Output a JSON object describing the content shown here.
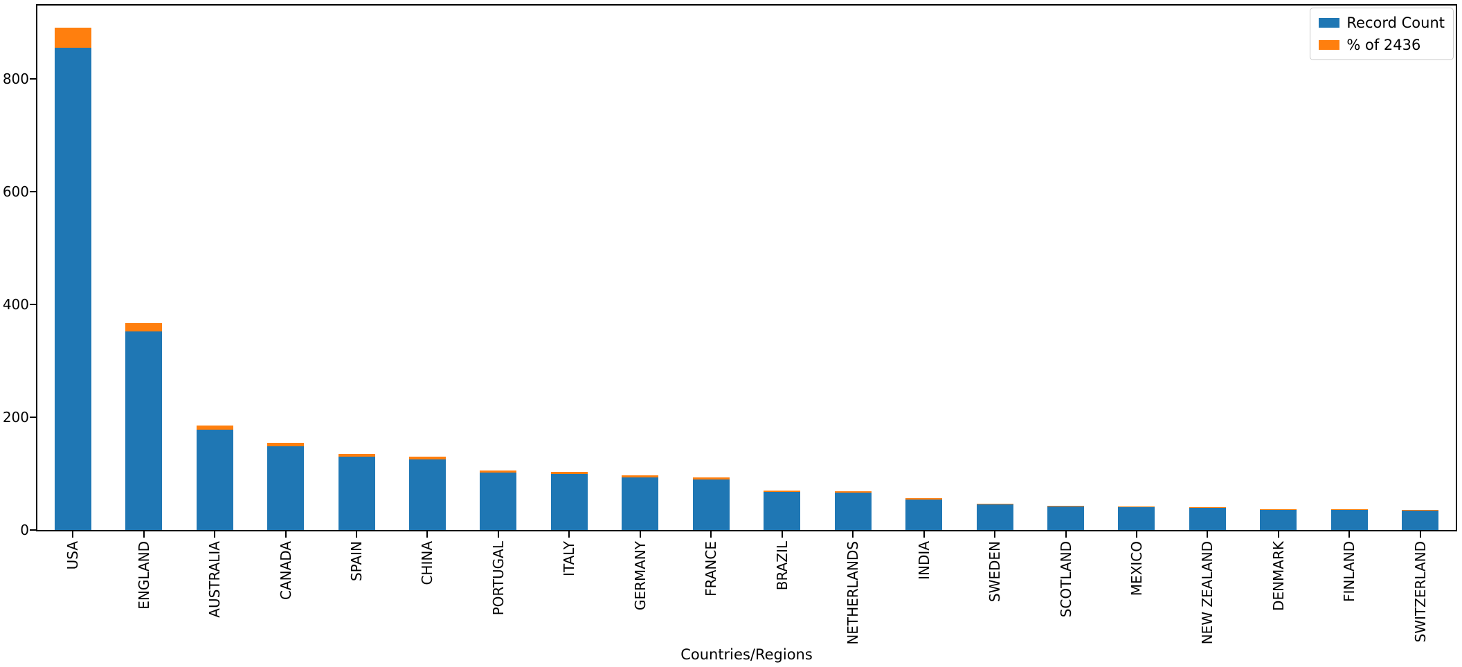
{
  "chart_data": {
    "type": "bar",
    "stacked": true,
    "title": "",
    "xlabel": "Countries/Regions",
    "ylabel": "",
    "ylim": [
      0,
      930
    ],
    "yticks": [
      0,
      200,
      400,
      600,
      800
    ],
    "ytick_labels": [
      "0",
      "200",
      "400",
      "600",
      "800"
    ],
    "grid": false,
    "legend_position": "upper right",
    "categories": [
      "USA",
      "ENGLAND",
      "AUSTRALIA",
      "CANADA",
      "SPAIN",
      "CHINA",
      "PORTUGAL",
      "ITALY",
      "GERMANY",
      "FRANCE",
      "BRAZIL",
      "NETHERLANDS",
      "INDIA",
      "SWEDEN",
      "SCOTLAND",
      "MEXICO",
      "NEW ZEALAND",
      "DENMARK",
      "FINLAND",
      "SWITZERLAND"
    ],
    "series": [
      {
        "name": "Record Count",
        "color": "#1f77b4",
        "values": [
          855,
          352,
          178,
          148,
          130,
          125,
          102,
          99,
          93,
          89,
          67,
          66,
          54,
          45,
          42,
          40,
          39,
          36,
          35,
          34
        ]
      },
      {
        "name": "% of 2436",
        "color": "#ff7f0e",
        "values": [
          35.1,
          14.4,
          7.3,
          6.1,
          5.3,
          5.1,
          4.2,
          4.1,
          3.8,
          3.7,
          2.8,
          2.7,
          2.2,
          1.8,
          1.7,
          1.6,
          1.6,
          1.5,
          1.4,
          1.4
        ]
      }
    ]
  }
}
